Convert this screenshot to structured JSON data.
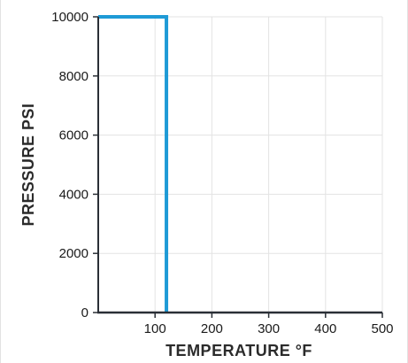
{
  "chart_data": {
    "type": "line",
    "xlabel": "TEMPERATURE °F",
    "ylabel": "PRESSURE PSI",
    "xlim": [
      0,
      500
    ],
    "ylim": [
      0,
      10000
    ],
    "x_ticks": [
      100,
      200,
      300,
      400,
      500
    ],
    "x_tick_labels": [
      "100",
      "200",
      "300",
      "400",
      "500"
    ],
    "y_ticks": [
      0,
      2000,
      4000,
      6000,
      8000,
      10000
    ],
    "y_tick_labels": [
      "0",
      "2000",
      "4000",
      "6000",
      "8000",
      "10000"
    ],
    "grid": true,
    "series": [
      {
        "color": "#1e9ad6",
        "points": [
          {
            "x": 0,
            "y": 10000
          },
          {
            "x": 120,
            "y": 10000
          },
          {
            "x": 120,
            "y": 0
          }
        ]
      }
    ],
    "colors": {
      "series": "#1e9ad6",
      "axis": "#2a2f36",
      "grid": "#e3e3e3"
    }
  }
}
